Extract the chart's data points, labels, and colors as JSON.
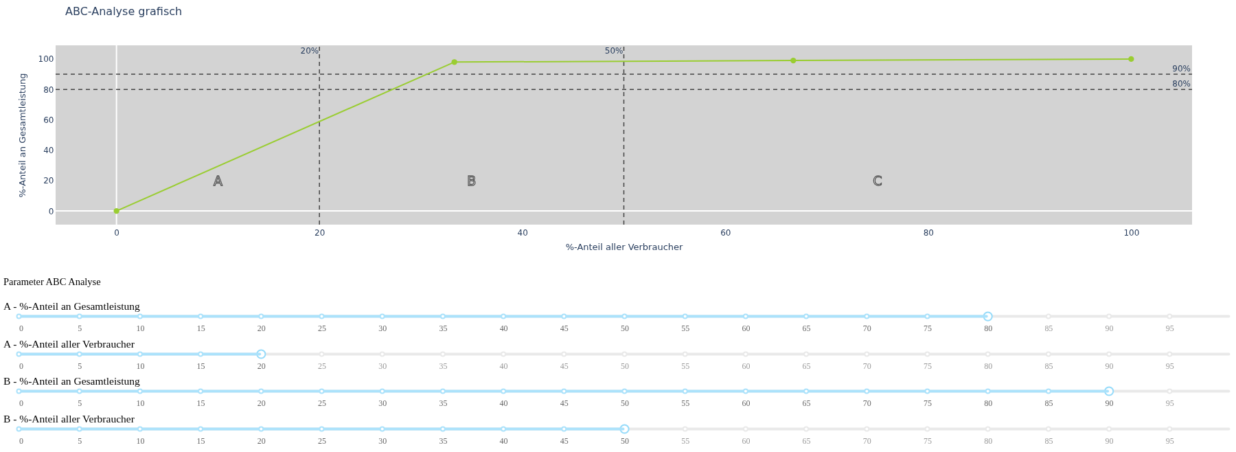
{
  "chart_data": [
    {
      "type": "line",
      "title": "ABC-Analyse grafisch",
      "xlabel": "%-Anteil aller Verbraucher",
      "ylabel": "%-Anteil an Gesamtleistung",
      "x": [
        0,
        33.3,
        66.7,
        100
      ],
      "series": [
        {
          "color": "#9acd32",
          "values": [
            0,
            98,
            99,
            100
          ]
        }
      ],
      "xlim": [
        -6,
        106
      ],
      "ylim": [
        -9,
        109
      ],
      "xticks": [
        0,
        20,
        40,
        60,
        80,
        100
      ],
      "yticks": [
        0,
        20,
        40,
        60,
        80,
        100
      ],
      "marker": "circle",
      "line_style": "solid",
      "ref_lines": [
        {
          "axis": "x",
          "value": 0,
          "color": "#ffffff",
          "line_style": "solid"
        },
        {
          "axis": "y",
          "value": 0,
          "color": "#ffffff",
          "line_style": "solid"
        },
        {
          "axis": "y",
          "value": 90,
          "label": "90%",
          "color": "#444444",
          "line_style": "dashed"
        },
        {
          "axis": "y",
          "value": 80,
          "label": "80%",
          "color": "#444444",
          "line_style": "dashed"
        },
        {
          "axis": "x",
          "value": 20,
          "label": "20%",
          "color": "#444444",
          "line_style": "dashed"
        },
        {
          "axis": "x",
          "value": 50,
          "label": "50%",
          "color": "#444444",
          "line_style": "dashed"
        }
      ],
      "annotations": [
        "A",
        "B",
        "C"
      ]
    },
    {
      "type": "bar",
      "orientation": "horizontal",
      "title": "Parameter ABC Analyse",
      "categories": [
        "A - %-Anteil an Gesamtleistung"
      ],
      "values": [
        80
      ],
      "color": "#abe2fb",
      "xlim": [
        0,
        100
      ],
      "xticks": [
        0,
        5,
        10,
        15,
        20,
        25,
        30,
        35,
        40,
        45,
        50,
        55,
        60,
        65,
        70,
        75,
        80,
        85,
        90,
        95
      ]
    },
    {
      "type": "bar",
      "orientation": "horizontal",
      "categories": [
        "A - %-Anteil aller Verbraucher"
      ],
      "values": [
        20
      ],
      "color": "#abe2fb",
      "xlim": [
        0,
        100
      ],
      "xticks": [
        0,
        5,
        10,
        15,
        20,
        25,
        30,
        35,
        40,
        45,
        50,
        55,
        60,
        65,
        70,
        75,
        80,
        85,
        90,
        95
      ]
    },
    {
      "type": "bar",
      "orientation": "horizontal",
      "categories": [
        "B - %-Anteil an Gesamtleistung"
      ],
      "values": [
        90
      ],
      "color": "#abe2fb",
      "xlim": [
        0,
        100
      ],
      "xticks": [
        0,
        5,
        10,
        15,
        20,
        25,
        30,
        35,
        40,
        45,
        50,
        55,
        60,
        65,
        70,
        75,
        80,
        85,
        90,
        95
      ]
    },
    {
      "type": "bar",
      "orientation": "horizontal",
      "categories": [
        "B - %-Anteil aller Verbraucher"
      ],
      "values": [
        50
      ],
      "color": "#abe2fb",
      "xlim": [
        0,
        100
      ],
      "xticks": [
        0,
        5,
        10,
        15,
        20,
        25,
        30,
        35,
        40,
        45,
        50,
        55,
        60,
        65,
        70,
        75,
        80,
        85,
        90,
        95
      ]
    }
  ]
}
